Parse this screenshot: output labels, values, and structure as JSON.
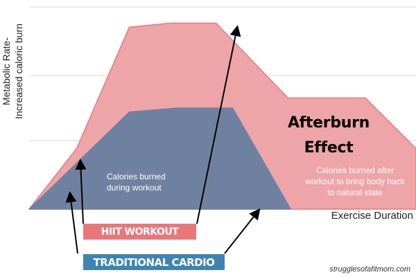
{
  "chart_data": {
    "type": "area",
    "ylabel": "Metabolic Rate-\nIncreased caloric burn",
    "xlabel": "Exercise Duration",
    "grid": true,
    "series": [
      {
        "name": "HIIT WORKOUT",
        "color": "#e8777c",
        "points": [
          [
            0,
            0
          ],
          [
            12.3,
            0.3
          ],
          [
            25.9,
            0.9
          ],
          [
            36.5,
            0.92
          ],
          [
            48.3,
            0.92
          ],
          [
            66.9,
            0.55
          ],
          [
            86.9,
            0.55
          ],
          [
            100,
            0.3
          ]
        ]
      },
      {
        "name": "TRADITIONAL CARDIO",
        "color": "#6a7f9c",
        "points": [
          [
            0,
            0
          ],
          [
            25.9,
            0.48
          ],
          [
            38.3,
            0.5
          ],
          [
            52.6,
            0.5
          ],
          [
            67.6,
            0
          ]
        ]
      }
    ],
    "annotations": {
      "during": "Calories burned during workout",
      "after_title": "Afterburn Effect",
      "after": "Calories burned after workout to bring body back to natural state"
    }
  },
  "labels": {
    "hiit_tag": "HIIT WORKOUT",
    "cardio_tag": "TRADITIONAL CARDIO",
    "credit": "strugglesofafitmom.com"
  },
  "colors": {
    "hiit_fill": "#eea5a8",
    "hiit_stroke": "#e8777c",
    "cardio_fill": "#6f81a0",
    "hiit_tag_bg": "#e8777c",
    "cardio_tag_bg": "#3f84b0"
  }
}
